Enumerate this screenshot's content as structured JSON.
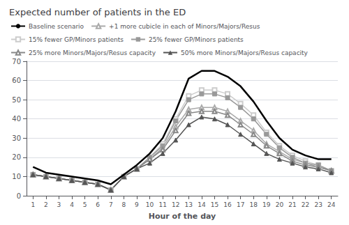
{
  "chart_data": {
    "type": "line",
    "title": "Expected number of patients in the ED",
    "x_label": "Hour of the day",
    "x": [
      1,
      2,
      3,
      4,
      5,
      6,
      7,
      8,
      9,
      10,
      11,
      12,
      13,
      14,
      15,
      16,
      17,
      18,
      19,
      20,
      21,
      22,
      23,
      24
    ],
    "series": [
      {
        "name": "Baseline scenario",
        "color": "#000000",
        "marker": "none",
        "values": [
          15,
          12,
          11,
          10,
          9,
          8,
          6,
          11,
          16,
          22,
          30,
          44,
          61,
          65,
          65,
          62,
          57,
          49,
          39,
          30,
          24,
          21,
          19,
          19
        ]
      },
      {
        "name": "+1 more cubicle in each of Minors/Majors/Resus",
        "color": "#aaaaaa",
        "marker": "triangle-open",
        "values": [
          11,
          10,
          9,
          8,
          7,
          6,
          3,
          10,
          14,
          19,
          25,
          36,
          45,
          46,
          46,
          44,
          39,
          34,
          27,
          23,
          19,
          17,
          15,
          13
        ]
      },
      {
        "name": "15% fewer GP/Minors patients",
        "color": "#cccccc",
        "marker": "square-open",
        "values": [
          11,
          10,
          9,
          8,
          7,
          6,
          3,
          10,
          14,
          20,
          27,
          40,
          52,
          55,
          55,
          53,
          48,
          42,
          33,
          26,
          21,
          18,
          16,
          13
        ]
      },
      {
        "name": "25% fewer GP/Minors patients",
        "color": "#999999",
        "marker": "square",
        "values": [
          11,
          10,
          9,
          8,
          7,
          6,
          3,
          10,
          14,
          20,
          26,
          39,
          50,
          53,
          53,
          51,
          46,
          40,
          32,
          25,
          20,
          17,
          16,
          13
        ]
      },
      {
        "name": "25% more Minors/Majors/Resus capacity",
        "color": "#888888",
        "marker": "triangle-open",
        "values": [
          11,
          10,
          9,
          8,
          7,
          6,
          3,
          10,
          14,
          19,
          24,
          34,
          43,
          44,
          44,
          42,
          37,
          32,
          26,
          22,
          18,
          16,
          15,
          13
        ]
      },
      {
        "name": "50% more Minors/Majors/Resus capacity",
        "color": "#555555",
        "marker": "triangle",
        "values": [
          11,
          10,
          9,
          8,
          7,
          6,
          3,
          10,
          14,
          17,
          22,
          29,
          37,
          41,
          40,
          37,
          32,
          27,
          22,
          19,
          17,
          15,
          14,
          12
        ]
      }
    ],
    "xlim": [
      0.5,
      24.5
    ],
    "xticks": [
      1,
      2,
      3,
      4,
      5,
      6,
      7,
      8,
      9,
      10,
      11,
      12,
      13,
      14,
      15,
      16,
      17,
      18,
      19,
      20,
      21,
      22,
      23,
      24
    ],
    "ylim": [
      0,
      70
    ],
    "yticks": [
      0,
      10,
      20,
      30,
      40,
      50,
      60,
      70
    ],
    "grid": true,
    "legend": "top"
  }
}
